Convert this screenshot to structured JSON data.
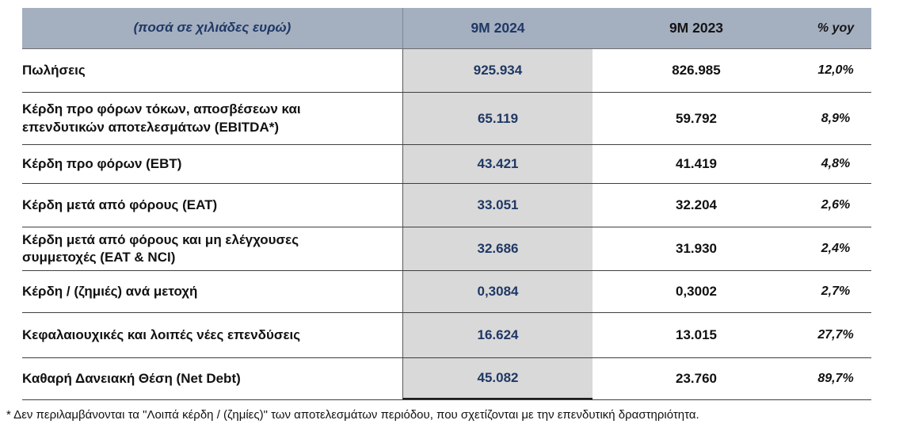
{
  "table": {
    "header": {
      "label": "(ποσά σε χιλιάδες ευρώ)",
      "col_2024": "9M 2024",
      "col_2023": "9M 2023",
      "col_yoy": "% yoy"
    },
    "rows": [
      {
        "label": "Πωλήσεις",
        "v2024": "925.934",
        "v2023": "826.985",
        "yoy": "12,0%"
      },
      {
        "label": "Κέρδη προ φόρων τόκων, αποσβέσεων και επενδυτικών αποτελεσμάτων (EBITDA*)",
        "v2024": "65.119",
        "v2023": "59.792",
        "yoy": "8,9%"
      },
      {
        "label": "Κέρδη προ φόρων (EBT)",
        "v2024": "43.421",
        "v2023": "41.419",
        "yoy": "4,8%"
      },
      {
        "label": "Κέρδη μετά από φόρους (EAT)",
        "v2024": "33.051",
        "v2023": "32.204",
        "yoy": "2,6%"
      },
      {
        "label": "Κέρδη μετά από φόρους και μη ελέγχουσες συμμετοχές (EAT & NCI)",
        "v2024": "32.686",
        "v2023": "31.930",
        "yoy": "2,4%"
      },
      {
        "label": "Κέρδη / (ζημιές) ανά μετοχή",
        "v2024": "0,3084",
        "v2023": "0,3002",
        "yoy": "2,7%"
      },
      {
        "label": "Κεφαλαιουχικές και λοιπές νέες επενδύσεις",
        "v2024": "16.624",
        "v2023": "13.015",
        "yoy": "27,7%"
      },
      {
        "label": "Καθαρή Δανειακή Θέση (Net Debt)",
        "v2024": "45.082",
        "v2023": "23.760",
        "yoy": "89,7%"
      }
    ],
    "footnote": "* Δεν περιλαμβάνονται τα \"Λοιπά κέρδη / (ζημίες)\" των αποτελεσμάτων περιόδου, που σχετίζονται με την επενδυτική δραστηριότητα."
  },
  "colors": {
    "header_bg": "#a4afc0",
    "highlight_column_bg": "#d9d9d9",
    "accent_navy": "#1f3864",
    "text": "#111111",
    "border": "#3f3f3f"
  }
}
